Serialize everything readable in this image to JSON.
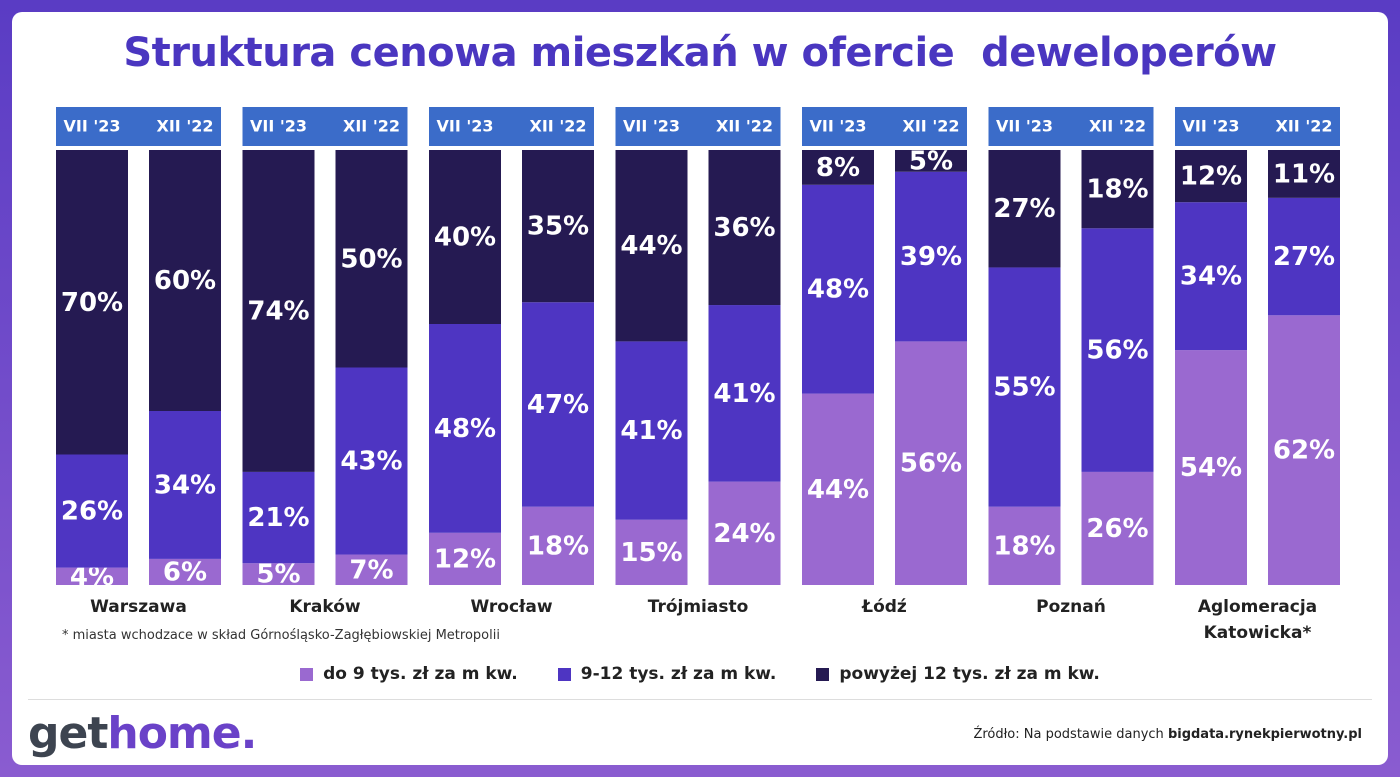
{
  "chart_data": {
    "type": "stacked_bar",
    "title": "Struktura cenowa mieszkań w ofercie  deweloperów",
    "periods": [
      "VII '23",
      "XII '22"
    ],
    "categories": [
      "Warszawa",
      "Kraków",
      "Wrocław",
      "Trójmiasto",
      "Łódź",
      "Poznań",
      "Aglomeracja Katowicka*"
    ],
    "series": [
      {
        "name": "do 9 tys. zł za m kw.",
        "color": "#9a69d0",
        "values": [
          [
            4,
            6
          ],
          [
            5,
            7
          ],
          [
            12,
            18
          ],
          [
            15,
            24
          ],
          [
            44,
            56
          ],
          [
            18,
            26
          ],
          [
            54,
            62
          ]
        ],
        "value_labels": [
          [
            "4%",
            "6%"
          ],
          [
            "5%",
            "7%"
          ],
          [
            "12%",
            "18%"
          ],
          [
            "15%",
            "24%"
          ],
          [
            "44%",
            "56%"
          ],
          [
            "18%",
            "26%"
          ],
          [
            "54%",
            "62%"
          ]
        ]
      },
      {
        "name": "9-12 tys. zł za m kw.",
        "color": "#4e35c2",
        "values": [
          [
            26,
            34
          ],
          [
            21,
            43
          ],
          [
            48,
            47
          ],
          [
            41,
            41
          ],
          [
            48,
            39
          ],
          [
            55,
            56
          ],
          [
            34,
            27
          ]
        ],
        "value_labels": [
          [
            "26%",
            "34%"
          ],
          [
            "21%",
            "43%"
          ],
          [
            "48%",
            "47%"
          ],
          [
            "41%",
            "41%"
          ],
          [
            "48%",
            "39%"
          ],
          [
            "55%",
            "56%"
          ],
          [
            "34%",
            "27%"
          ]
        ]
      },
      {
        "name": "powyżej 12 tys. zł za m kw.",
        "color": "#251a52",
        "values": [
          [
            70,
            60
          ],
          [
            74,
            50
          ],
          [
            40,
            35
          ],
          [
            44,
            36
          ],
          [
            8,
            5
          ],
          [
            27,
            18
          ],
          [
            12,
            11
          ]
        ],
        "value_labels": [
          [
            "70%",
            "60%"
          ],
          [
            "74%",
            "50%"
          ],
          [
            "40%",
            "35%"
          ],
          [
            "44%",
            "36%"
          ],
          [
            "8%",
            "5%"
          ],
          [
            "27%",
            "18%"
          ],
          [
            "12%",
            "11%"
          ]
        ]
      }
    ],
    "footnote": "* miasta wchodzace w skład Górnośląsko-Zagłębiowskiej Metropolii"
  },
  "logo": {
    "part1": "get",
    "part2": "home."
  },
  "source": {
    "text": "Źródło: Na podstawie danych ",
    "bold": "bigdata.rynekpierwotny.pl"
  }
}
